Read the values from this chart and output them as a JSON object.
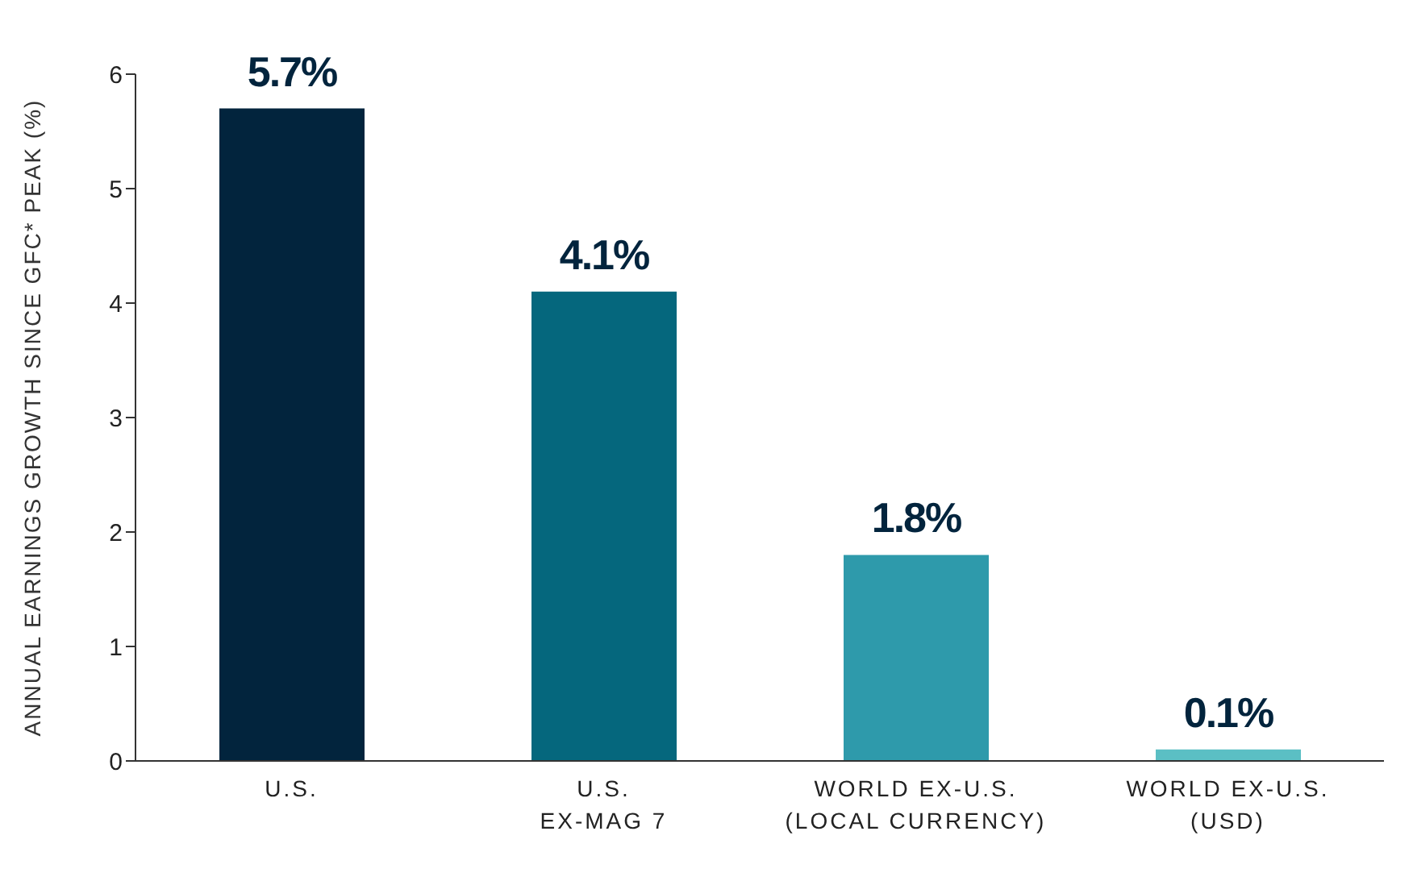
{
  "chart_data": {
    "type": "bar",
    "ylabel": "ANNUAL EARNINGS GROWTH SINCE GFC* PEAK (%)",
    "categories": [
      "U.S.",
      "U.S.\nEX-MAG 7",
      "WORLD EX-U.S.\n(LOCAL CURRENCY)",
      "WORLD EX-U.S.\n(USD)"
    ],
    "values": [
      5.7,
      4.1,
      1.8,
      0.1
    ],
    "colors": [
      "#02243d",
      "#05677d",
      "#2e9aab",
      "#5bbfc4"
    ],
    "value_labels": [
      "5.7%",
      "4.1%",
      "1.8%",
      "0.1%"
    ],
    "ylim": [
      0,
      6
    ],
    "yticks": [
      0,
      1,
      2,
      3,
      4,
      5,
      6
    ],
    "grid": false,
    "legend": false
  }
}
